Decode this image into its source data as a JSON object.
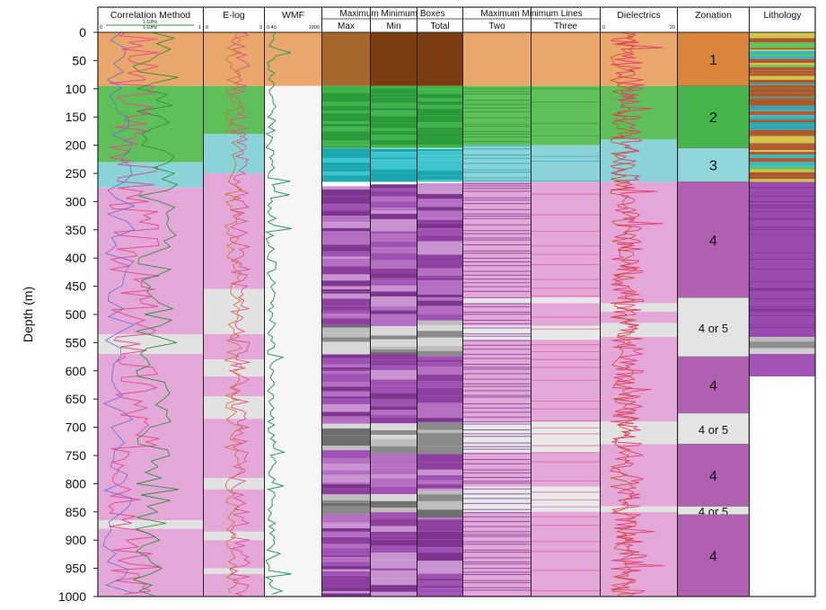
{
  "chart_data": {
    "type": "table",
    "ylabel": "Depth (m)",
    "ylim": [
      0,
      1000
    ],
    "yticks": [
      0,
      50,
      100,
      150,
      200,
      250,
      300,
      350,
      400,
      450,
      500,
      550,
      600,
      650,
      700,
      750,
      800,
      850,
      900,
      950,
      1000
    ],
    "group_headers": [
      "Maximum Minimum Boxes",
      "Maximum Minimum Lines"
    ],
    "columns": [
      {
        "id": "correlation",
        "title": "Correlation Method",
        "legend": [
          "1-10Hz",
          "1-10Hz"
        ],
        "scale": [
          "0",
          "1"
        ]
      },
      {
        "id": "elog",
        "title": "E-log",
        "scale": [
          "0",
          "3"
        ]
      },
      {
        "id": "wmf",
        "title": "WMF",
        "scale": [
          "0.40",
          "1900"
        ]
      },
      {
        "id": "box_max",
        "title": "Max",
        "group": 0
      },
      {
        "id": "box_min",
        "title": "Min",
        "group": 0
      },
      {
        "id": "box_total",
        "title": "Total",
        "group": 0
      },
      {
        "id": "line_two",
        "title": "Two",
        "group": 1
      },
      {
        "id": "line_three",
        "title": "Three",
        "group": 1
      },
      {
        "id": "dielectrics",
        "title": "Dielectrics",
        "scale": [
          "0",
          "20"
        ]
      },
      {
        "id": "zonation",
        "title": "Zonation"
      },
      {
        "id": "lithology",
        "title": "Lithology"
      }
    ],
    "zones": [
      {
        "label": "1",
        "top": 0,
        "base": 95,
        "color": "#d9853a"
      },
      {
        "label": "2",
        "top": 95,
        "base": 205,
        "color": "#45b44a"
      },
      {
        "label": "3",
        "top": 205,
        "base": 265,
        "color": "#8fd6dc"
      },
      {
        "label": "4",
        "top": 265,
        "base": 470,
        "color": "#b15fb0"
      },
      {
        "label": "4 or 5",
        "top": 470,
        "base": 575,
        "color": "#e4e4e4"
      },
      {
        "label": "4",
        "top": 575,
        "base": 675,
        "color": "#b15fb0"
      },
      {
        "label": "4 or 5",
        "top": 675,
        "base": 730,
        "color": "#e4e4e4"
      },
      {
        "label": "4",
        "top": 730,
        "base": 840,
        "color": "#b15fb0"
      },
      {
        "label": "4 or 5",
        "top": 840,
        "base": 855,
        "color": "#e4e4e4"
      },
      {
        "label": "4",
        "top": 855,
        "base": 1000,
        "color": "#b15fb0"
      }
    ],
    "colors": {
      "orange": "#e9a76b",
      "green": "#5fc05a",
      "cyan": "#8ad3d8",
      "pink": "#e4a8d8",
      "grey": "#e2e2e2",
      "purple": "#a866b4",
      "dark_brown": "#7a3c10"
    }
  }
}
